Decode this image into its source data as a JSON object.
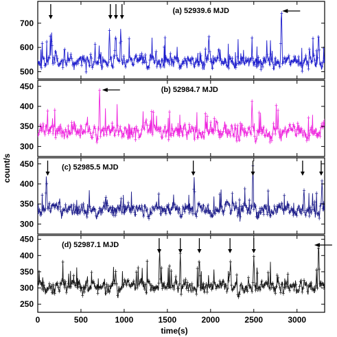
{
  "chart_data": [
    {
      "type": "line",
      "label": "(a) 52939.6 MJD",
      "color": "#1a1acc",
      "ylim": [
        470,
        790
      ],
      "yticks": [
        500,
        600,
        700
      ],
      "xlim": [
        0,
        3320
      ],
      "baseline": 545,
      "noise": 30,
      "spike_prob": 0.05,
      "spike_amp": 70,
      "seed": 11,
      "flares": [
        {
          "x": 160,
          "y": 670
        },
        {
          "x": 830,
          "y": 670
        },
        {
          "x": 900,
          "y": 665
        },
        {
          "x": 960,
          "y": 680
        },
        {
          "x": 2820,
          "y": 780
        },
        {
          "x": 3250,
          "y": 670
        }
      ],
      "arrows_down": [
        150,
        840,
        905,
        975
      ],
      "arrows_left": [
        2830
      ]
    },
    {
      "type": "line",
      "label": "(b) 52984.7 MJD",
      "color": "#ee22dd",
      "ylim": [
        275,
        465
      ],
      "yticks": [
        300,
        350,
        400,
        450
      ],
      "xlim": [
        0,
        3320
      ],
      "baseline": 338,
      "noise": 20,
      "spike_prob": 0.05,
      "spike_amp": 35,
      "seed": 23,
      "flares": [
        {
          "x": 715,
          "y": 448
        },
        {
          "x": 2480,
          "y": 415
        }
      ],
      "arrows_down": [],
      "arrows_left": [
        745
      ]
    },
    {
      "type": "line",
      "label": "(c) 52985.5 MJD",
      "color": "#1a1a88",
      "ylim": [
        275,
        465
      ],
      "yticks": [
        300,
        350,
        400,
        450
      ],
      "xlim": [
        0,
        3320
      ],
      "baseline": 335,
      "noise": 18,
      "spike_prob": 0.06,
      "spike_amp": 30,
      "seed": 37,
      "flares": [
        {
          "x": 100,
          "y": 430
        },
        {
          "x": 1810,
          "y": 420
        },
        {
          "x": 2490,
          "y": 445
        },
        {
          "x": 3080,
          "y": 390
        },
        {
          "x": 3290,
          "y": 415
        }
      ],
      "arrows_down": [
        115,
        1800,
        2490,
        3065,
        3280
      ],
      "arrows_left": []
    },
    {
      "type": "line",
      "label": "(d) 52987.1 MJD",
      "color": "#111111",
      "ylim": [
        225,
        462
      ],
      "yticks": [
        250,
        300,
        350,
        400,
        450
      ],
      "xlim": [
        0,
        3320
      ],
      "baseline": 305,
      "noise": 22,
      "spike_prob": 0.07,
      "spike_amp": 45,
      "seed": 53,
      "flares": [
        {
          "x": 1410,
          "y": 425
        },
        {
          "x": 1650,
          "y": 410
        },
        {
          "x": 1870,
          "y": 400
        },
        {
          "x": 2230,
          "y": 385
        },
        {
          "x": 2500,
          "y": 400
        },
        {
          "x": 3250,
          "y": 455
        }
      ],
      "arrows_down": [
        1405,
        1650,
        1870,
        2225,
        2500
      ],
      "arrows_left": [
        3200
      ]
    }
  ],
  "axes": {
    "xlabel": "time(s)",
    "ylabel": "count/s",
    "xticks": [
      0,
      500,
      1000,
      1500,
      2000,
      2500,
      3000
    ]
  }
}
